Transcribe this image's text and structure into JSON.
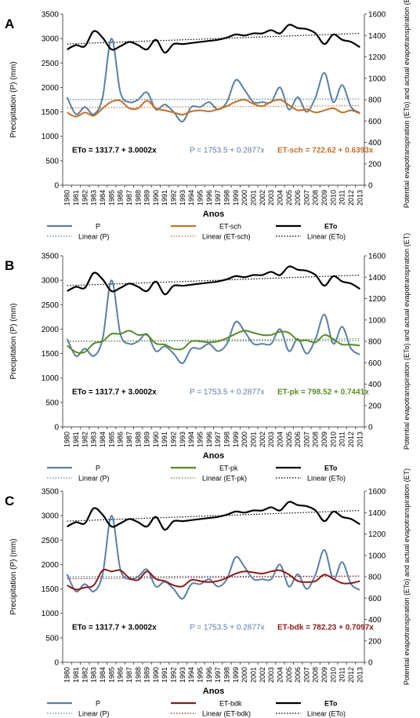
{
  "panel_labels": [
    "A",
    "B",
    "C"
  ],
  "years": [
    "1980",
    "1981",
    "1982",
    "1983",
    "1984",
    "1985",
    "1986",
    "1987",
    "1988",
    "1989",
    "1990",
    "1991",
    "1992",
    "1993",
    "1994",
    "1995",
    "1996",
    "1997",
    "1998",
    "1999",
    "2000",
    "2001",
    "2002",
    "2003",
    "2004",
    "2005",
    "2006",
    "2007",
    "2008",
    "2009",
    "2010",
    "2011",
    "2012",
    "2013"
  ],
  "axes": {
    "xlabel": "Anos",
    "ylabel_left": "Precipitation (P) (mm)",
    "ylabel_right": "Potential evapotranspiration (ETo) and actual evapotranspiration (ET)",
    "left_ticks": [
      "0",
      "500",
      "1000",
      "1500",
      "2000",
      "2500",
      "3000",
      "3500"
    ],
    "right_ticks": [
      "0",
      "200",
      "400",
      "600",
      "800",
      "1000",
      "1200",
      "1400",
      "1600"
    ]
  },
  "colors": {
    "P": "#5b7fa3",
    "ETo": "#000000",
    "ET-sch": "#c0702a",
    "ET-pk": "#5a8a2a",
    "ET-bdk": "#8b1a1a"
  },
  "panels": [
    {
      "label": "A",
      "equations": {
        "eto": "ETo = 1317.7 + 3.0002x",
        "p": "P = 1753.5 + 0.2877x",
        "et": "ET-sch = 722.62 + 0.6393x"
      },
      "legend": {
        "p": "P",
        "et": "ET-sch",
        "eto": "ETo",
        "lin_p": "Linear (P)",
        "lin_et": "Linear (ET-sch)",
        "lin_eto": "Linear (ETo)"
      }
    },
    {
      "label": "B",
      "equations": {
        "eto": "ETo = 1317.7 + 3.0002x",
        "p": "P = 1753.5 + 0.2877x",
        "et": "ET-pk   = 798.52 + 0.7441x"
      },
      "legend": {
        "p": "P",
        "et": "ET-pk",
        "eto": "ETo",
        "lin_p": "Linear (P)",
        "lin_et": "Linear (ET-pk)",
        "lin_eto": "Linear (ETo)"
      }
    },
    {
      "label": "C",
      "equations": {
        "eto": "ETo = 1317.7 + 3.0002x",
        "p": "P = 1753.5 + 0.2877x",
        "et": "ET-bdk = 782.23 + 0.7097x"
      },
      "legend": {
        "p": "P",
        "et": "ET-bdk",
        "eto": "ETo",
        "lin_p": "Linear (P)",
        "lin_et": "Linear (ET-bdk)",
        "lin_eto": "Linear (ETo)"
      }
    }
  ],
  "chart_data": [
    {
      "type": "line",
      "panel": "A",
      "x": [
        "1980",
        "1981",
        "1982",
        "1983",
        "1984",
        "1985",
        "1986",
        "1987",
        "1988",
        "1989",
        "1990",
        "1991",
        "1992",
        "1993",
        "1994",
        "1995",
        "1996",
        "1997",
        "1998",
        "1999",
        "2000",
        "2001",
        "2002",
        "2003",
        "2004",
        "2005",
        "2006",
        "2007",
        "2008",
        "2009",
        "2010",
        "2011",
        "2012",
        "2013"
      ],
      "xlabel": "Anos",
      "ylabel": "Precipitation (P) (mm)",
      "ylim": [
        0,
        3500
      ],
      "y2label": "Potential evapotranspiration (ETo) and actual evapotranspiration (ET)",
      "y2lim": [
        0,
        1600
      ],
      "series": [
        {
          "name": "P",
          "axis": "left",
          "values": [
            1800,
            1450,
            1600,
            1450,
            1800,
            3000,
            1900,
            1700,
            1750,
            1900,
            1550,
            1650,
            1500,
            1300,
            1600,
            1600,
            1700,
            1550,
            1700,
            2150,
            1950,
            1700,
            1700,
            1700,
            2000,
            1550,
            1800,
            1500,
            1800,
            2300,
            1700,
            2050,
            1600,
            1480
          ]
        },
        {
          "name": "ET-sch",
          "axis": "right",
          "values": [
            680,
            640,
            680,
            650,
            720,
            780,
            790,
            720,
            720,
            790,
            720,
            700,
            680,
            660,
            690,
            700,
            690,
            710,
            740,
            780,
            800,
            760,
            740,
            780,
            800,
            750,
            700,
            710,
            680,
            700,
            720,
            680,
            700,
            670
          ]
        },
        {
          "name": "ETo",
          "axis": "right",
          "values": [
            1270,
            1310,
            1300,
            1440,
            1380,
            1270,
            1300,
            1340,
            1310,
            1270,
            1360,
            1240,
            1320,
            1320,
            1330,
            1340,
            1350,
            1360,
            1380,
            1410,
            1400,
            1420,
            1420,
            1450,
            1420,
            1500,
            1470,
            1460,
            1420,
            1320,
            1410,
            1360,
            1340,
            1290
          ]
        },
        {
          "name": "Linear (P)",
          "axis": "left",
          "intercept": 1753.5,
          "slope": 0.2877
        },
        {
          "name": "Linear (ET-sch)",
          "axis": "right",
          "intercept": 722.62,
          "slope": 0.6393
        },
        {
          "name": "Linear (ETo)",
          "axis": "right",
          "intercept": 1317.7,
          "slope": 3.0002
        }
      ],
      "legend_position": "bottom"
    },
    {
      "type": "line",
      "panel": "B",
      "x": [
        "1980",
        "1981",
        "1982",
        "1983",
        "1984",
        "1985",
        "1986",
        "1987",
        "1988",
        "1989",
        "1990",
        "1991",
        "1992",
        "1993",
        "1994",
        "1995",
        "1996",
        "1997",
        "1998",
        "1999",
        "2000",
        "2001",
        "2002",
        "2003",
        "2004",
        "2005",
        "2006",
        "2007",
        "2008",
        "2009",
        "2010",
        "2011",
        "2012",
        "2013"
      ],
      "xlabel": "Anos",
      "ylabel": "Precipitation (P) (mm)",
      "ylim": [
        0,
        3500
      ],
      "y2label": "Potential evapotranspiration (ETo) and actual evapotranspiration (ET)",
      "y2lim": [
        0,
        1600
      ],
      "series": [
        {
          "name": "P",
          "axis": "left",
          "values": [
            1800,
            1450,
            1600,
            1450,
            1800,
            3000,
            1900,
            1700,
            1750,
            1900,
            1550,
            1650,
            1500,
            1300,
            1600,
            1600,
            1700,
            1550,
            1700,
            2150,
            1950,
            1700,
            1700,
            1700,
            2000,
            1550,
            1800,
            1500,
            1800,
            2300,
            1700,
            2050,
            1600,
            1480
          ]
        },
        {
          "name": "ET-pk",
          "axis": "right",
          "values": [
            760,
            700,
            700,
            780,
            800,
            870,
            870,
            900,
            860,
            860,
            780,
            770,
            730,
            730,
            800,
            800,
            790,
            800,
            830,
            870,
            900,
            880,
            860,
            860,
            890,
            880,
            810,
            810,
            790,
            860,
            820,
            770,
            770,
            760
          ]
        },
        {
          "name": "ETo",
          "axis": "right",
          "values": [
            1270,
            1310,
            1300,
            1440,
            1380,
            1270,
            1300,
            1340,
            1310,
            1270,
            1360,
            1240,
            1320,
            1320,
            1330,
            1340,
            1350,
            1360,
            1380,
            1410,
            1400,
            1420,
            1420,
            1450,
            1420,
            1500,
            1470,
            1460,
            1420,
            1320,
            1410,
            1360,
            1340,
            1290
          ]
        },
        {
          "name": "Linear (P)",
          "axis": "left",
          "intercept": 1753.5,
          "slope": 0.2877
        },
        {
          "name": "Linear (ET-pk)",
          "axis": "right",
          "intercept": 798.52,
          "slope": 0.7441
        },
        {
          "name": "Linear (ETo)",
          "axis": "right",
          "intercept": 1317.7,
          "slope": 3.0002
        }
      ],
      "legend_position": "bottom"
    },
    {
      "type": "line",
      "panel": "C",
      "x": [
        "1980",
        "1981",
        "1982",
        "1983",
        "1984",
        "1985",
        "1986",
        "1987",
        "1988",
        "1989",
        "1990",
        "1991",
        "1992",
        "1993",
        "1994",
        "1995",
        "1996",
        "1997",
        "1998",
        "1999",
        "2000",
        "2001",
        "2002",
        "2003",
        "2004",
        "2005",
        "2006",
        "2007",
        "2008",
        "2009",
        "2010",
        "2011",
        "2012",
        "2013"
      ],
      "xlabel": "Anos",
      "ylabel": "Precipitation (P) (mm)",
      "ylim": [
        0,
        3500
      ],
      "y2label": "Potential evapotranspiration (ETo) and actual evapotranspiration (ET)",
      "y2lim": [
        0,
        1600
      ],
      "series": [
        {
          "name": "P",
          "axis": "left",
          "values": [
            1800,
            1450,
            1600,
            1450,
            1800,
            3000,
            1900,
            1700,
            1750,
            1900,
            1550,
            1650,
            1500,
            1300,
            1600,
            1600,
            1700,
            1550,
            1700,
            2150,
            1950,
            1700,
            1700,
            1700,
            2000,
            1550,
            1800,
            1500,
            1800,
            2300,
            1700,
            2050,
            1600,
            1480
          ]
        },
        {
          "name": "ET-bdk",
          "axis": "right",
          "values": [
            720,
            680,
            700,
            720,
            860,
            850,
            860,
            790,
            770,
            850,
            780,
            760,
            720,
            710,
            770,
            760,
            750,
            760,
            790,
            830,
            850,
            840,
            830,
            850,
            860,
            820,
            760,
            750,
            760,
            820,
            780,
            740,
            740,
            760
          ]
        },
        {
          "name": "ETo",
          "axis": "right",
          "values": [
            1270,
            1310,
            1300,
            1440,
            1380,
            1270,
            1300,
            1340,
            1310,
            1270,
            1360,
            1240,
            1320,
            1320,
            1330,
            1340,
            1350,
            1360,
            1380,
            1410,
            1400,
            1420,
            1420,
            1450,
            1420,
            1500,
            1470,
            1460,
            1420,
            1320,
            1410,
            1360,
            1340,
            1290
          ]
        },
        {
          "name": "Linear (P)",
          "axis": "left",
          "intercept": 1753.5,
          "slope": 0.2877
        },
        {
          "name": "Linear (ET-bdk)",
          "axis": "right",
          "intercept": 782.23,
          "slope": 0.7097
        },
        {
          "name": "Linear (ETo)",
          "axis": "right",
          "intercept": 1317.7,
          "slope": 3.0002
        }
      ],
      "legend_position": "bottom"
    }
  ]
}
